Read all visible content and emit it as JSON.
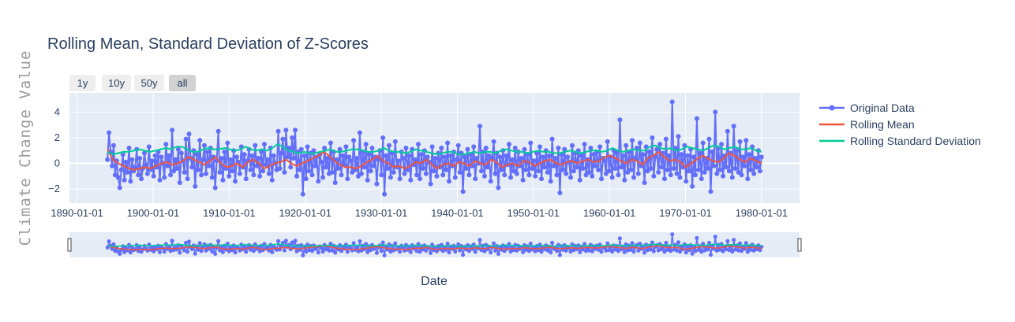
{
  "chart_data": {
    "type": "line",
    "title": "Rolling Mean, Standard Deviation of Z-Scores",
    "xlabel": "Date",
    "ylabel": "Climate Change Value",
    "xlim": [
      "1889-01-01",
      "1985-01-01"
    ],
    "ylim": [
      -3.1,
      5.5
    ],
    "x_ticks": [
      "1890-01-01",
      "1900-01-01",
      "1910-01-01",
      "1920-01-01",
      "1930-01-01",
      "1940-01-01",
      "1950-01-01",
      "1960-01-01",
      "1970-01-01",
      "1980-01-01"
    ],
    "y_ticks": [
      -2,
      0,
      2,
      4
    ],
    "grid": true,
    "legend_position": "right",
    "range_buttons": [
      "1y",
      "10y",
      "50y",
      "all"
    ],
    "active_button": "all",
    "x_start": "1894-01-01",
    "x_end": "1979-12-31",
    "sample_step_years": 0.25,
    "series": [
      {
        "name": "Original Data",
        "color": "#636efa",
        "mode": "lines+markers",
        "values": [
          0.3,
          2.4,
          0.9,
          -0.2,
          1.4,
          -0.9,
          0.2,
          -1.1,
          -1.9,
          -0.5,
          0.7,
          -1.3,
          0.1,
          -0.7,
          1.2,
          -1.4,
          0.3,
          -0.6,
          -0.3,
          1.1,
          -0.9,
          0.4,
          -1.2,
          -0.4,
          0.8,
          -0.1,
          -0.8,
          1.3,
          -0.5,
          0.2,
          -1.0,
          0.6,
          -0.3,
          0.9,
          -1.3,
          0.5,
          0.0,
          -1.1,
          1.5,
          -0.2,
          0.6,
          -0.9,
          2.6,
          -0.6,
          0.3,
          -0.4,
          1.1,
          -1.5,
          0.8,
          0.2,
          -0.7,
          1.9,
          -1.2,
          2.3,
          0.4,
          -0.3,
          1.0,
          -1.8,
          0.7,
          -0.5,
          1.8,
          -0.9,
          0.3,
          1.4,
          -0.8,
          0.9,
          -0.2,
          1.2,
          -1.1,
          0.5,
          -1.9,
          0.2,
          2.5,
          -0.7,
          0.4,
          -1.3,
          0.9,
          -0.4,
          1.6,
          -1.0,
          0.3,
          -0.6,
          1.0,
          -1.4,
          0.5,
          0.1,
          -0.8,
          1.3,
          -0.3,
          0.7,
          -1.2,
          0.2,
          1.1,
          -0.5,
          0.6,
          -0.9,
          1.4,
          -0.2,
          0.4,
          -1.0,
          0.9,
          -0.6,
          1.5,
          -0.1,
          0.3,
          -0.8,
          1.2,
          -1.3,
          0.6,
          0.0,
          -0.5,
          2.5,
          -0.4,
          0.8,
          1.9,
          -0.7,
          2.6,
          0.5,
          1.2,
          -0.3,
          2.0,
          0.4,
          2.6,
          -1.0,
          0.9,
          -0.5,
          1.1,
          -2.4,
          0.6,
          -1.2,
          1.3,
          -0.6,
          0.8,
          -0.9,
          1.0,
          -0.2,
          0.5,
          -1.4,
          0.7,
          0.1,
          -1.1,
          1.2,
          -0.3,
          0.4,
          -0.8,
          1.6,
          -0.7,
          0.9,
          -1.5,
          0.3,
          -0.4,
          1.1,
          -0.9,
          0.6,
          -0.1,
          1.3,
          -1.2,
          0.5,
          0.2,
          -0.7,
          1.8,
          -0.5,
          0.4,
          -1.0,
          2.4,
          -0.8,
          0.9,
          -0.3,
          1.5,
          -1.3,
          0.7,
          -0.6,
          1.2,
          -0.2,
          0.5,
          -1.6,
          0.3,
          1.0,
          -0.9,
          2.0,
          -2.4,
          0.6,
          -0.4,
          1.4,
          -1.1,
          0.8,
          -0.7,
          1.7,
          -0.3,
          0.2,
          -1.2,
          0.9,
          0.4,
          -0.8,
          1.2,
          -0.5,
          0.6,
          -1.3,
          1.1,
          -0.1,
          0.3,
          -0.9,
          1.5,
          -1.2,
          0.7,
          -0.4,
          1.0,
          -0.8,
          0.5,
          0.1,
          -1.6,
          1.3,
          -0.6,
          0.4,
          -1.0,
          0.8,
          -0.3,
          1.2,
          -0.9,
          0.5,
          -0.5,
          1.6,
          -1.4,
          0.6,
          -0.2,
          0.9,
          -1.1,
          0.3,
          1.4,
          -0.7,
          0.8,
          -2.2,
          0.5,
          -0.4,
          1.1,
          -0.9,
          0.7,
          -0.2,
          1.3,
          -1.2,
          0.4,
          0.0,
          2.9,
          -0.6,
          0.9,
          -1.0,
          1.2,
          -0.3,
          0.6,
          -1.4,
          0.4,
          1.7,
          -0.8,
          0.8,
          -1.9,
          0.5,
          -0.5,
          1.0,
          -0.9,
          0.6,
          -0.1,
          1.5,
          -1.1,
          0.3,
          -0.6,
          1.2,
          -0.8,
          0.9,
          -0.2,
          0.4,
          -1.3,
          1.1,
          -0.5,
          0.7,
          -0.9,
          1.6,
          -0.4,
          0.2,
          -1.0,
          0.8,
          -0.6,
          1.3,
          -1.2,
          0.5,
          -0.3,
          1.0,
          -0.7,
          0.6,
          -1.4,
          1.9,
          -0.2,
          0.4,
          -0.9,
          1.2,
          -2.3,
          0.7,
          -0.5,
          1.1,
          -0.8,
          0.5,
          0.1,
          -1.1,
          1.4,
          -0.6,
          0.8,
          -0.3,
          1.0,
          -1.3,
          0.6,
          -0.4,
          1.5,
          -0.9,
          0.3,
          -0.7,
          1.2,
          -1.0,
          0.7,
          -0.2,
          0.9,
          -0.5,
          1.3,
          -1.2,
          0.4,
          0.2,
          -0.8,
          1.7,
          -0.6,
          0.5,
          -1.1,
          1.0,
          -0.4,
          0.8,
          -0.9,
          3.4,
          -0.3,
          0.6,
          -1.3,
          1.4,
          -0.7,
          0.9,
          -0.5,
          1.8,
          -1.1,
          0.4,
          1.2,
          -0.8,
          1.6,
          -0.2,
          0.7,
          -1.5,
          1.3,
          -0.6,
          0.9,
          -0.4,
          2.0,
          -1.0,
          0.5,
          1.1,
          -0.7,
          1.5,
          -0.3,
          0.8,
          -1.2,
          1.9,
          -0.5,
          0.6,
          -0.9,
          4.8,
          -0.4,
          1.2,
          -0.8,
          2.1,
          -1.1,
          0.7,
          -0.3,
          1.4,
          -1.4,
          0.6,
          -0.6,
          1.1,
          -1.8,
          0.5,
          -0.9,
          3.5,
          -0.5,
          0.8,
          -1.2,
          1.6,
          -0.7,
          0.4,
          -0.4,
          1.9,
          -2.2,
          0.9,
          -0.2,
          4.0,
          -0.8,
          1.2,
          -0.5,
          1.5,
          -1.0,
          0.6,
          -0.3,
          2.5,
          -0.6,
          0.8,
          -1.1,
          2.9,
          -0.4,
          1.0,
          -0.7,
          1.7,
          -0.9,
          0.5,
          -0.2,
          1.8,
          -1.2,
          0.7,
          -0.5,
          1.3,
          -0.8,
          0.4,
          -0.3,
          1.0,
          -0.6,
          0.5
        ]
      },
      {
        "name": "Rolling Mean",
        "color": "#ef553b",
        "mode": "lines",
        "values": [
          1.1,
          0.3,
          0.0,
          -0.2,
          -0.4,
          -0.5,
          -0.4,
          -0.3,
          -0.4,
          -0.2,
          0.0,
          0.1,
          -0.1,
          0.0,
          0.2,
          0.5,
          0.3,
          0.1,
          -0.1,
          0.2,
          0.5,
          0.0,
          -0.3,
          -0.2,
          0.0,
          -0.3,
          0.1,
          0.3,
          0.0,
          -0.4,
          -0.2,
          0.0,
          0.1,
          0.3,
          0.0,
          -0.2,
          0.0,
          0.2,
          0.4,
          0.6,
          0.9,
          0.6,
          0.2,
          -0.1,
          -0.3,
          -0.3,
          -0.4,
          -0.2,
          0.1,
          0.3,
          0.6,
          0.2,
          0.0,
          -0.3,
          -0.2,
          -0.4,
          -0.2,
          0.1,
          0.0,
          0.3,
          -0.1,
          -0.4,
          -0.1,
          0.0,
          -0.2,
          0.1,
          0.0,
          -0.2,
          0.2,
          0.0,
          -0.1,
          0.3,
          0.1,
          -0.3,
          -0.1,
          0.0,
          -0.2,
          0.2,
          0.1,
          -0.2,
          0.0,
          0.2,
          0.3,
          0.0,
          -0.1,
          0.1,
          0.2,
          0.0,
          0.2,
          0.3,
          0.1,
          0.2,
          0.5,
          0.6,
          0.4,
          0.2,
          0.0,
          0.3,
          0.2,
          -0.1,
          0.4,
          0.6,
          0.9,
          0.5,
          0.2,
          0.3,
          0.1,
          -0.3,
          0.0,
          0.3,
          0.6,
          0.4,
          0.2,
          0.1,
          0.4,
          0.8,
          0.6,
          0.3,
          0.1,
          0.4,
          0.2,
          0.0
        ]
      },
      {
        "name": "Rolling Standard Deviation",
        "color": "#00cc96",
        "mode": "lines",
        "values": [
          0.9,
          0.7,
          0.8,
          0.9,
          0.9,
          1.0,
          1.1,
          1.0,
          0.9,
          1.0,
          1.1,
          1.2,
          1.1,
          1.3,
          1.3,
          1.1,
          0.9,
          0.9,
          1.1,
          1.2,
          1.1,
          1.1,
          1.2,
          1.1,
          1.0,
          1.1,
          1.3,
          1.1,
          1.0,
          1.1,
          1.0,
          1.2,
          1.5,
          1.3,
          1.0,
          0.9,
          0.8,
          0.9,
          0.8,
          0.8,
          0.9,
          1.0,
          1.1,
          0.9,
          0.9,
          1.0,
          1.1,
          1.1,
          1.0,
          0.9,
          0.9,
          1.0,
          1.2,
          1.0,
          0.9,
          0.9,
          0.8,
          0.9,
          1.1,
          1.0,
          0.9,
          0.8,
          0.7,
          0.8,
          0.9,
          0.9,
          0.7,
          0.7,
          0.8,
          0.9,
          0.8,
          0.9,
          0.9,
          0.8,
          1.0,
          1.1,
          1.0,
          0.9,
          0.9,
          0.8,
          0.9,
          1.0,
          0.9,
          0.9,
          0.8,
          0.8,
          0.9,
          1.0,
          0.9,
          0.8,
          0.9,
          1.0,
          1.0,
          0.9,
          1.0,
          1.2,
          1.0,
          0.9,
          1.0,
          1.1,
          1.0,
          1.0,
          1.3,
          1.4,
          1.2,
          1.1,
          1.2,
          1.0,
          1.1,
          1.3,
          1.2,
          1.1,
          1.0,
          1.2,
          1.4,
          1.3,
          1.1,
          1.2,
          1.3,
          1.1,
          1.1,
          1.2,
          1.0,
          0.9
        ]
      }
    ]
  }
}
